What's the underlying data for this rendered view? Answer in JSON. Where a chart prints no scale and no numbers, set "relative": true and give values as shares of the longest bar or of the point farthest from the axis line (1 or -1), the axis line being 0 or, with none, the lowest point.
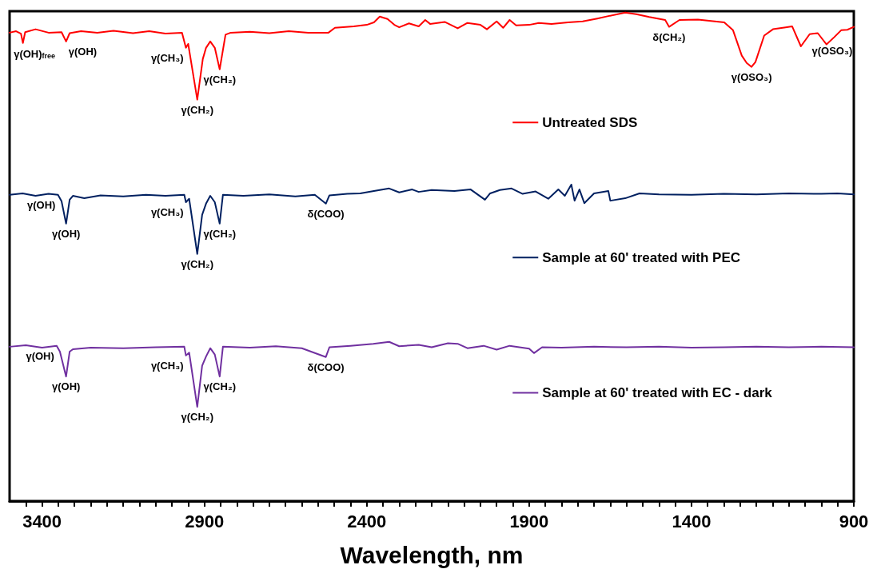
{
  "chart_data": {
    "type": "line",
    "xlabel": "Wavelength, nm",
    "relative": true,
    "grid": false,
    "legend": "right",
    "marker": "none",
    "line_style": "solid",
    "xlim": [
      3500,
      900
    ],
    "xticks": [
      {
        "value": 3450,
        "label": null
      },
      3400,
      {
        "value": 3350,
        "label": null
      },
      {
        "value": 3300,
        "label": null
      },
      {
        "value": 3250,
        "label": null
      },
      {
        "value": 3200,
        "label": null
      },
      {
        "value": 3150,
        "label": null
      },
      {
        "value": 3100,
        "label": null
      },
      {
        "value": 3050,
        "label": null
      },
      {
        "value": 3000,
        "label": null
      },
      {
        "value": 2950,
        "label": null
      },
      2900,
      {
        "value": 2850,
        "label": null
      },
      {
        "value": 2800,
        "label": null
      },
      {
        "value": 2750,
        "label": null
      },
      {
        "value": 2700,
        "label": null
      },
      {
        "value": 2650,
        "label": null
      },
      {
        "value": 2600,
        "label": null
      },
      {
        "value": 2550,
        "label": null
      },
      {
        "value": 2500,
        "label": null
      },
      {
        "value": 2450,
        "label": null
      },
      2400,
      {
        "value": 2350,
        "label": null
      },
      {
        "value": 2300,
        "label": null
      },
      {
        "value": 2250,
        "label": null
      },
      {
        "value": 2200,
        "label": null
      },
      {
        "value": 2150,
        "label": null
      },
      {
        "value": 2100,
        "label": null
      },
      {
        "value": 2050,
        "label": null
      },
      {
        "value": 2000,
        "label": null
      },
      {
        "value": 1950,
        "label": null
      },
      1900,
      {
        "value": 1850,
        "label": null
      },
      {
        "value": 1800,
        "label": null
      },
      {
        "value": 1750,
        "label": null
      },
      {
        "value": 1700,
        "label": null
      },
      {
        "value": 1650,
        "label": null
      },
      {
        "value": 1600,
        "label": null
      },
      {
        "value": 1550,
        "label": null
      },
      {
        "value": 1500,
        "label": null
      },
      {
        "value": 1450,
        "label": null
      },
      1400,
      {
        "value": 1350,
        "label": null
      },
      {
        "value": 1300,
        "label": null
      },
      {
        "value": 1250,
        "label": null
      },
      {
        "value": 1200,
        "label": null
      },
      {
        "value": 1150,
        "label": null
      },
      {
        "value": 1100,
        "label": null
      },
      {
        "value": 1050,
        "label": null
      },
      {
        "value": 1000,
        "label": null
      },
      {
        "value": 950,
        "label": null
      },
      900
    ],
    "series": [
      {
        "name": "Untreated SDS",
        "color": "#ff0000",
        "x": [
          3500,
          3480,
          3465,
          3459,
          3452,
          3420,
          3380,
          3340,
          3326,
          3315,
          3280,
          3230,
          3180,
          3120,
          3070,
          3020,
          2969,
          2957,
          2950,
          2922,
          2905,
          2895,
          2882,
          2868,
          2853,
          2835,
          2819,
          2760,
          2700,
          2640,
          2580,
          2518,
          2498,
          2440,
          2400,
          2378,
          2360,
          2336,
          2315,
          2300,
          2270,
          2240,
          2220,
          2205,
          2160,
          2120,
          2090,
          2050,
          2030,
          2000,
          1980,
          1960,
          1940,
          1900,
          1870,
          1831,
          1780,
          1735,
          1690,
          1656,
          1604,
          1570,
          1530,
          1481,
          1469,
          1437,
          1380,
          1299,
          1272,
          1245,
          1230,
          1215,
          1203,
          1176,
          1149,
          1110,
          1090,
          1063,
          1036,
          1011,
          984,
          960,
          939,
          920,
          900
        ],
        "values": [
          0.959,
          0.962,
          0.957,
          0.938,
          0.96,
          0.966,
          0.959,
          0.96,
          0.941,
          0.958,
          0.962,
          0.959,
          0.963,
          0.958,
          0.962,
          0.957,
          0.959,
          0.928,
          0.936,
          0.822,
          0.905,
          0.928,
          0.941,
          0.928,
          0.884,
          0.955,
          0.959,
          0.961,
          0.958,
          0.962,
          0.959,
          0.959,
          0.969,
          0.972,
          0.975,
          0.98,
          0.992,
          0.987,
          0.975,
          0.97,
          0.978,
          0.972,
          0.985,
          0.977,
          0.981,
          0.968,
          0.979,
          0.975,
          0.966,
          0.982,
          0.969,
          0.985,
          0.974,
          0.975,
          0.979,
          0.977,
          0.98,
          0.982,
          0.988,
          0.993,
          1.0,
          0.997,
          0.991,
          0.985,
          0.971,
          0.985,
          0.986,
          0.98,
          0.964,
          0.912,
          0.897,
          0.889,
          0.899,
          0.953,
          0.966,
          0.97,
          0.972,
          0.931,
          0.956,
          0.958,
          0.935,
          0.95,
          0.964,
          0.965,
          0.971
        ]
      },
      {
        "name": "Sample at 60' treated with PEC",
        "color": "#002060",
        "x": [
          3500,
          3460,
          3420,
          3380,
          3351,
          3340,
          3326,
          3315,
          3305,
          3270,
          3220,
          3150,
          3080,
          3020,
          2962,
          2957,
          2947,
          2922,
          2907,
          2895,
          2882,
          2868,
          2853,
          2843,
          2780,
          2700,
          2620,
          2560,
          2526,
          2515,
          2460,
          2420,
          2378,
          2331,
          2300,
          2260,
          2240,
          2200,
          2130,
          2080,
          2036,
          2020,
          1990,
          1954,
          1920,
          1880,
          1841,
          1810,
          1790,
          1770,
          1760,
          1745,
          1730,
          1700,
          1656,
          1650,
          1604,
          1560,
          1500,
          1400,
          1300,
          1200,
          1100,
          1000,
          950,
          900
        ],
        "values": [
          0.627,
          0.63,
          0.625,
          0.629,
          0.627,
          0.614,
          0.568,
          0.617,
          0.625,
          0.62,
          0.626,
          0.624,
          0.627,
          0.625,
          0.627,
          0.612,
          0.619,
          0.506,
          0.586,
          0.609,
          0.625,
          0.612,
          0.568,
          0.627,
          0.625,
          0.628,
          0.624,
          0.627,
          0.609,
          0.626,
          0.629,
          0.63,
          0.635,
          0.64,
          0.632,
          0.638,
          0.633,
          0.637,
          0.635,
          0.638,
          0.617,
          0.63,
          0.637,
          0.64,
          0.629,
          0.634,
          0.619,
          0.638,
          0.625,
          0.648,
          0.615,
          0.638,
          0.61,
          0.63,
          0.635,
          0.615,
          0.62,
          0.63,
          0.628,
          0.627,
          0.629,
          0.628,
          0.63,
          0.629,
          0.63,
          0.628
        ]
      },
      {
        "name": "Sample at 60' treated with EC - dark",
        "color": "#7030a0",
        "x": [
          3500,
          3450,
          3400,
          3355,
          3345,
          3326,
          3315,
          3305,
          3250,
          3150,
          3050,
          2962,
          2957,
          2947,
          2922,
          2907,
          2895,
          2882,
          2868,
          2853,
          2843,
          2760,
          2680,
          2600,
          2526,
          2515,
          2450,
          2380,
          2331,
          2300,
          2240,
          2200,
          2150,
          2120,
          2090,
          2040,
          2000,
          1960,
          1900,
          1885,
          1860,
          1800,
          1700,
          1600,
          1500,
          1400,
          1300,
          1200,
          1100,
          1000,
          900
        ],
        "values": [
          0.316,
          0.319,
          0.314,
          0.318,
          0.306,
          0.255,
          0.306,
          0.311,
          0.314,
          0.313,
          0.315,
          0.316,
          0.298,
          0.304,
          0.193,
          0.277,
          0.296,
          0.313,
          0.3,
          0.255,
          0.316,
          0.314,
          0.317,
          0.313,
          0.295,
          0.315,
          0.318,
          0.322,
          0.326,
          0.317,
          0.32,
          0.315,
          0.323,
          0.322,
          0.313,
          0.318,
          0.31,
          0.318,
          0.312,
          0.303,
          0.315,
          0.314,
          0.316,
          0.315,
          0.316,
          0.314,
          0.315,
          0.316,
          0.315,
          0.316,
          0.315
        ]
      }
    ],
    "annotations": [
      {
        "text": "γ(OH)$_{free}$",
        "x": 3459,
        "y": 0.938
      },
      {
        "text": "γ(OH)",
        "x": 3326,
        "y": 0.941
      },
      {
        "text": "γ(CH₃)",
        "x": 2957,
        "y": 0.928
      },
      {
        "text": "γ(CH₂)",
        "x": 2922,
        "y": 0.822
      },
      {
        "text": "γ(CH₂)",
        "x": 2853,
        "y": 0.884
      },
      {
        "text": "δ(CH₂)",
        "x": 1469,
        "y": 0.971
      },
      {
        "text": "γ(OSO₃)",
        "x": 1215,
        "y": 0.889
      },
      {
        "text": "γ(OSO₃)",
        "x": 1036,
        "y": 0.956
      },
      {
        "text": "γ(OH)",
        "x": 3351,
        "y": 0.627
      },
      {
        "text": "γ(OH)",
        "x": 3326,
        "y": 0.568
      },
      {
        "text": "γ(CH₃)",
        "x": 2957,
        "y": 0.612
      },
      {
        "text": "γ(CH₂)",
        "x": 2922,
        "y": 0.506
      },
      {
        "text": "γ(CH₂)",
        "x": 2853,
        "y": 0.568
      },
      {
        "text": "δ(COO)",
        "x": 2526,
        "y": 0.609
      },
      {
        "text": "γ(OH)",
        "x": 3355,
        "y": 0.318
      },
      {
        "text": "γ(OH)",
        "x": 3326,
        "y": 0.255
      },
      {
        "text": "γ(CH₃)",
        "x": 2957,
        "y": 0.298
      },
      {
        "text": "γ(CH₂)",
        "x": 2922,
        "y": 0.193
      },
      {
        "text": "γ(CH₂)",
        "x": 2853,
        "y": 0.255
      },
      {
        "text": "δ(COO)",
        "x": 2526,
        "y": 0.295
      }
    ]
  }
}
